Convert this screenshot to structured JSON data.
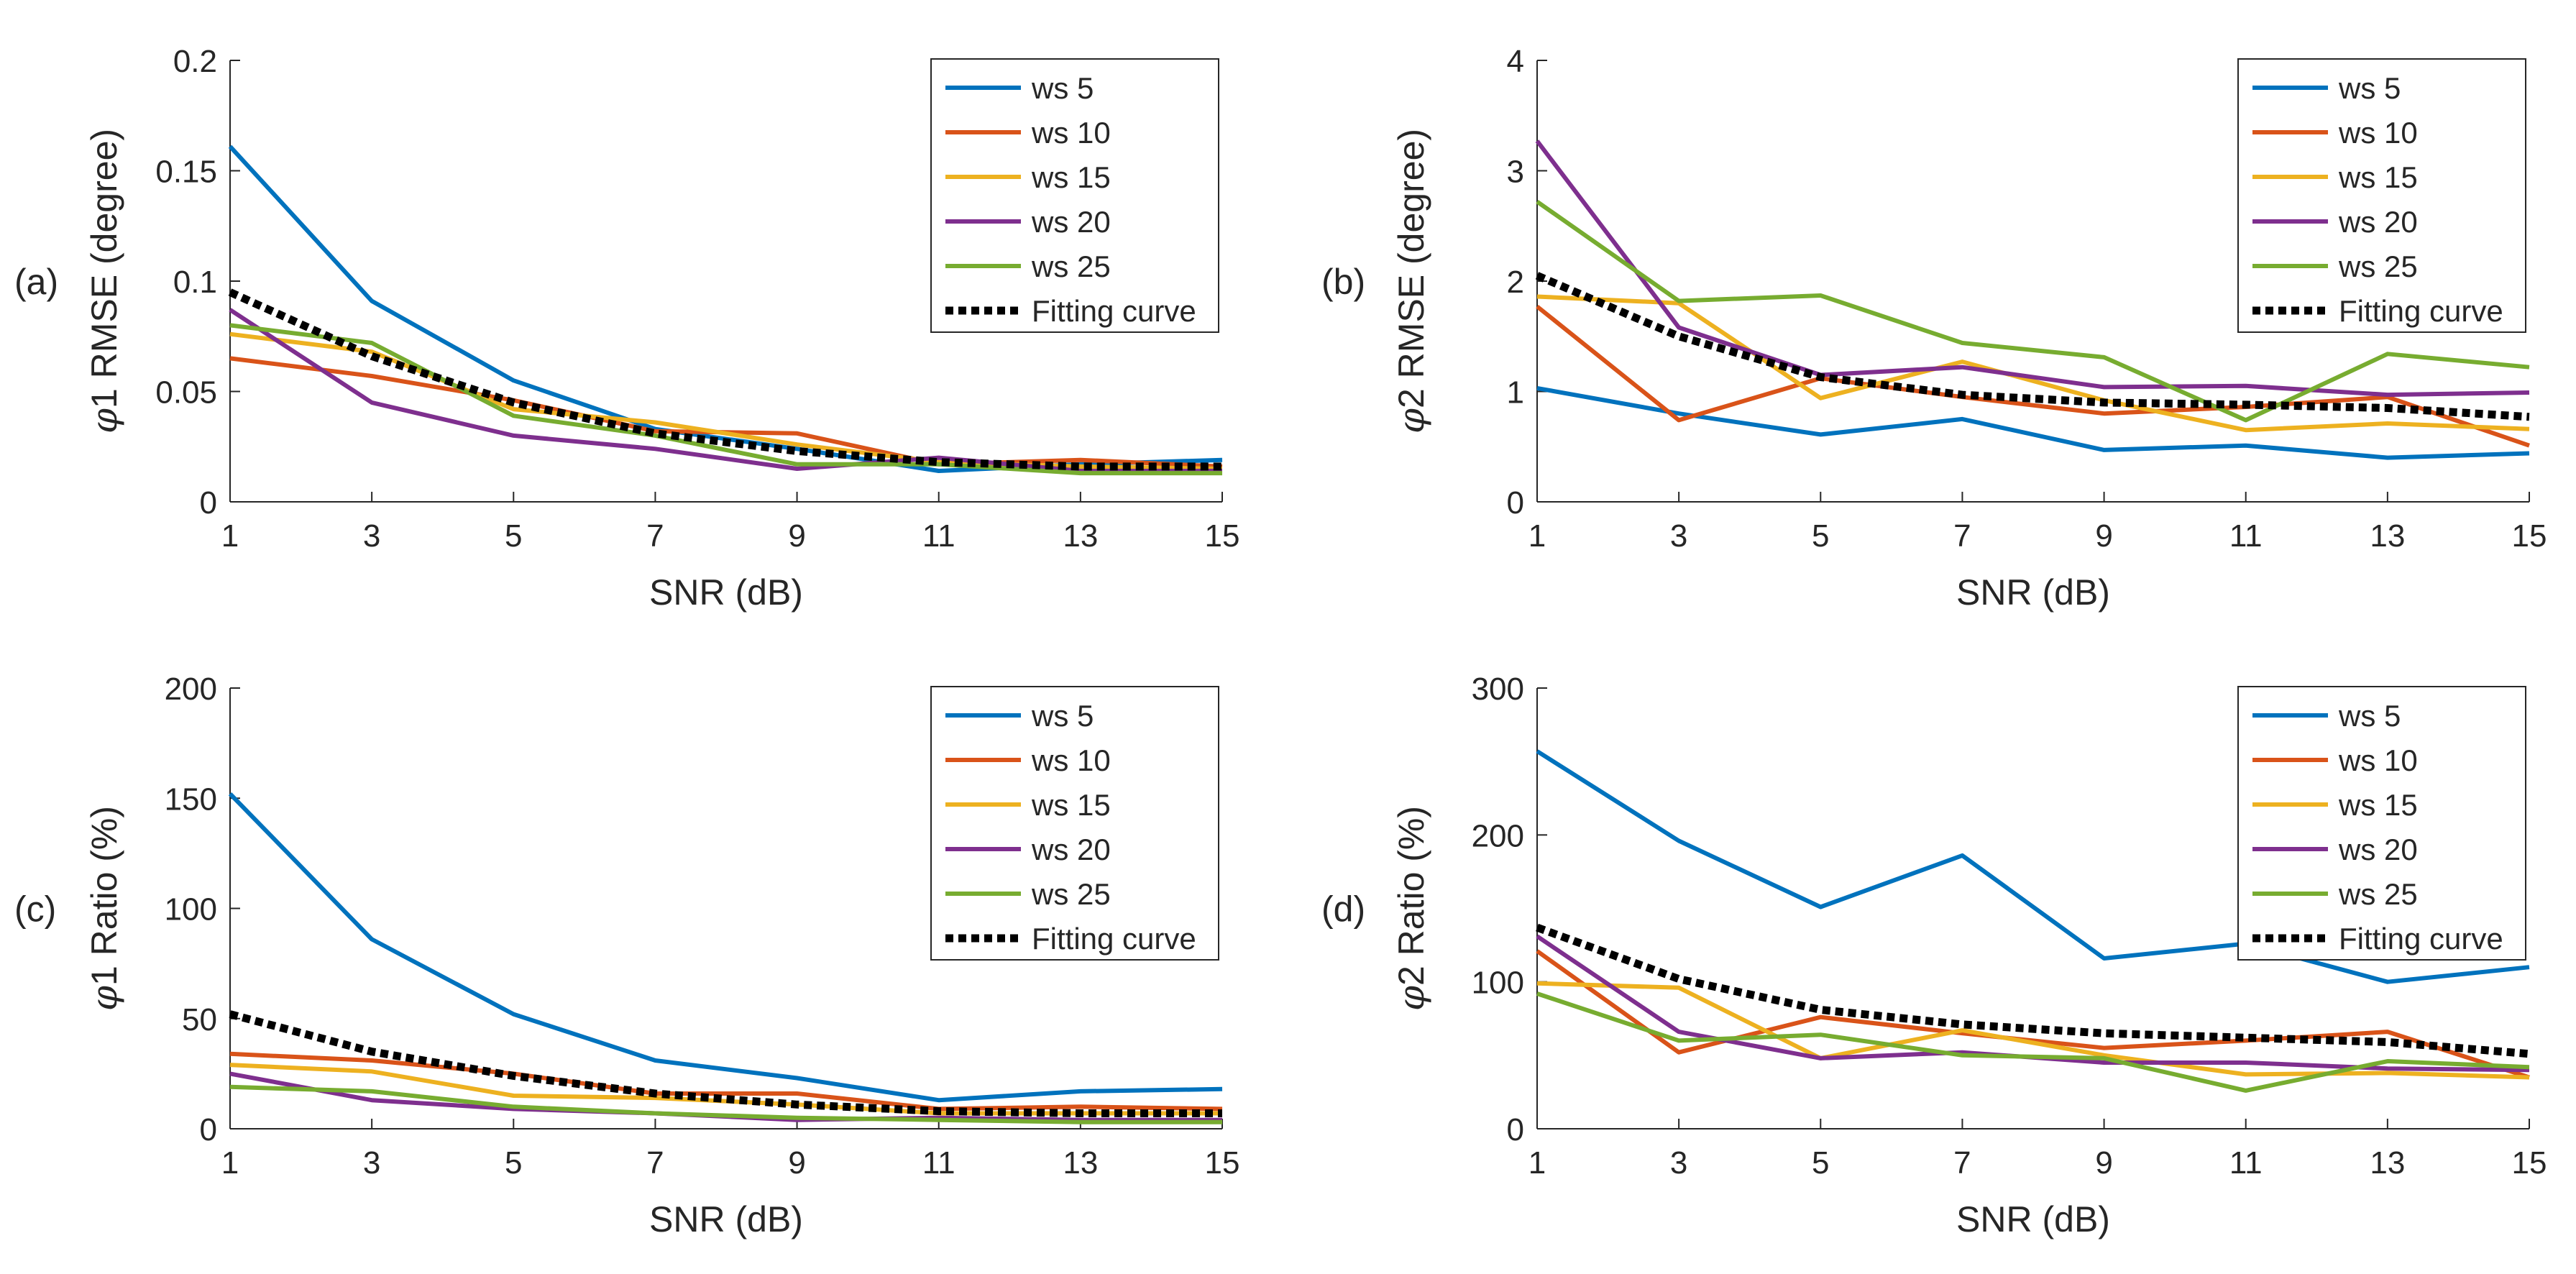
{
  "colors": {
    "ws5": "#0072BD",
    "ws10": "#D95319",
    "ws15": "#EDB120",
    "ws20": "#7E2F8E",
    "ws25": "#77AC30",
    "fit": "#000000",
    "axis": "#262626"
  },
  "chart_data": [
    {
      "type": "line",
      "panel_label": "(a)",
      "xlabel": "SNR (dB)",
      "ylabel_symbol": "φ",
      "ylabel_rest": "1 RMSE (degree)",
      "x": [
        1,
        3,
        5,
        7,
        9,
        11,
        13,
        15
      ],
      "xlim": [
        1,
        15
      ],
      "ylim": [
        0,
        0.2
      ],
      "xticks": [
        1,
        3,
        5,
        7,
        9,
        11,
        13,
        15
      ],
      "yticks": [
        0,
        0.05,
        0.1,
        0.15,
        0.2
      ],
      "ytick_labels": [
        "0",
        "0.05",
        "0.1",
        "0.15",
        "0.2"
      ],
      "legend_position": "top-right",
      "series": [
        {
          "name": "ws 5",
          "color_key": "ws5",
          "values": [
            0.161,
            0.091,
            0.055,
            0.033,
            0.024,
            0.014,
            0.017,
            0.019
          ]
        },
        {
          "name": "ws 10",
          "color_key": "ws10",
          "values": [
            0.065,
            0.057,
            0.046,
            0.032,
            0.031,
            0.017,
            0.019,
            0.016
          ]
        },
        {
          "name": "ws 15",
          "color_key": "ws15",
          "values": [
            0.076,
            0.068,
            0.042,
            0.036,
            0.026,
            0.018,
            0.016,
            0.015
          ]
        },
        {
          "name": "ws 20",
          "color_key": "ws20",
          "values": [
            0.087,
            0.045,
            0.03,
            0.024,
            0.015,
            0.02,
            0.014,
            0.014
          ]
        },
        {
          "name": "ws 25",
          "color_key": "ws25",
          "values": [
            0.08,
            0.072,
            0.039,
            0.03,
            0.017,
            0.017,
            0.013,
            0.013
          ]
        },
        {
          "name": "Fitting curve",
          "color_key": "fit",
          "dashed": true,
          "values": [
            0.095,
            0.066,
            0.045,
            0.031,
            0.023,
            0.018,
            0.016,
            0.016
          ]
        }
      ]
    },
    {
      "type": "line",
      "panel_label": "(b)",
      "xlabel": "SNR (dB)",
      "ylabel_symbol": "φ",
      "ylabel_rest": "2 RMSE (degree)",
      "x": [
        1,
        3,
        5,
        7,
        9,
        11,
        13,
        15
      ],
      "xlim": [
        1,
        15
      ],
      "ylim": [
        0,
        4
      ],
      "xticks": [
        1,
        3,
        5,
        7,
        9,
        11,
        13,
        15
      ],
      "yticks": [
        0,
        1,
        2,
        3,
        4
      ],
      "ytick_labels": [
        "0",
        "1",
        "2",
        "3",
        "4"
      ],
      "legend_position": "top-right",
      "series": [
        {
          "name": "ws 5",
          "color_key": "ws5",
          "values": [
            1.03,
            0.8,
            0.61,
            0.75,
            0.47,
            0.51,
            0.4,
            0.44
          ]
        },
        {
          "name": "ws 10",
          "color_key": "ws10",
          "values": [
            1.77,
            0.74,
            1.12,
            0.95,
            0.8,
            0.86,
            0.95,
            0.51
          ]
        },
        {
          "name": "ws 15",
          "color_key": "ws15",
          "values": [
            1.86,
            1.8,
            0.94,
            1.27,
            0.92,
            0.65,
            0.71,
            0.66
          ]
        },
        {
          "name": "ws 20",
          "color_key": "ws20",
          "values": [
            3.27,
            1.58,
            1.15,
            1.22,
            1.04,
            1.05,
            0.97,
            0.99
          ]
        },
        {
          "name": "ws 25",
          "color_key": "ws25",
          "values": [
            2.72,
            1.82,
            1.87,
            1.44,
            1.31,
            0.74,
            1.34,
            1.22
          ]
        },
        {
          "name": "Fitting curve",
          "color_key": "fit",
          "dashed": true,
          "values": [
            2.05,
            1.5,
            1.13,
            0.97,
            0.9,
            0.88,
            0.85,
            0.77
          ]
        }
      ]
    },
    {
      "type": "line",
      "panel_label": "(c)",
      "xlabel": "SNR (dB)",
      "ylabel_symbol": "φ",
      "ylabel_rest": "1 Ratio (%)",
      "x": [
        1,
        3,
        5,
        7,
        9,
        11,
        13,
        15
      ],
      "xlim": [
        1,
        15
      ],
      "ylim": [
        0,
        200
      ],
      "xticks": [
        1,
        3,
        5,
        7,
        9,
        11,
        13,
        15
      ],
      "yticks": [
        0,
        50,
        100,
        150,
        200
      ],
      "ytick_labels": [
        "0",
        "50",
        "100",
        "150",
        "200"
      ],
      "legend_position": "top-right",
      "series": [
        {
          "name": "ws 5",
          "color_key": "ws5",
          "values": [
            152,
            86,
            52,
            31,
            23,
            13,
            17,
            18
          ]
        },
        {
          "name": "ws 10",
          "color_key": "ws10",
          "values": [
            34,
            31,
            25,
            16,
            16,
            9,
            10,
            9
          ]
        },
        {
          "name": "ws 15",
          "color_key": "ws15",
          "values": [
            29,
            26,
            15,
            14,
            11,
            7,
            7,
            7
          ]
        },
        {
          "name": "ws 20",
          "color_key": "ws20",
          "values": [
            25,
            13,
            9,
            7,
            4,
            5,
            4,
            4
          ]
        },
        {
          "name": "ws 25",
          "color_key": "ws25",
          "values": [
            19,
            17,
            10,
            7,
            5,
            4,
            3,
            3
          ]
        },
        {
          "name": "Fitting curve",
          "color_key": "fit",
          "dashed": true,
          "values": [
            52,
            35,
            24,
            16,
            11,
            8,
            7,
            7
          ]
        }
      ]
    },
    {
      "type": "line",
      "panel_label": "(d)",
      "xlabel": "SNR (dB)",
      "ylabel_symbol": "φ",
      "ylabel_rest": "2 Ratio (%)",
      "x": [
        1,
        3,
        5,
        7,
        9,
        11,
        13,
        15
      ],
      "xlim": [
        1,
        15
      ],
      "ylim": [
        0,
        300
      ],
      "xticks": [
        1,
        3,
        5,
        7,
        9,
        11,
        13,
        15
      ],
      "yticks": [
        0,
        100,
        200,
        300
      ],
      "ytick_labels": [
        "0",
        "100",
        "200",
        "300"
      ],
      "legend_position": "top-right",
      "series": [
        {
          "name": "ws 5",
          "color_key": "ws5",
          "values": [
            257,
            196,
            151,
            186,
            116,
            126,
            100,
            110
          ]
        },
        {
          "name": "ws 10",
          "color_key": "ws10",
          "values": [
            121,
            52,
            76,
            65,
            55,
            60,
            66,
            35
          ]
        },
        {
          "name": "ws 15",
          "color_key": "ws15",
          "values": [
            99,
            96,
            48,
            67,
            50,
            37,
            38,
            35
          ]
        },
        {
          "name": "ws 20",
          "color_key": "ws20",
          "values": [
            131,
            66,
            48,
            52,
            45,
            45,
            41,
            40
          ]
        },
        {
          "name": "ws 25",
          "color_key": "ws25",
          "values": [
            92,
            60,
            64,
            50,
            48,
            26,
            46,
            42
          ]
        },
        {
          "name": "Fitting curve",
          "color_key": "fit",
          "dashed": true,
          "values": [
            137,
            102,
            81,
            71,
            65,
            62,
            59,
            51
          ]
        }
      ]
    }
  ]
}
